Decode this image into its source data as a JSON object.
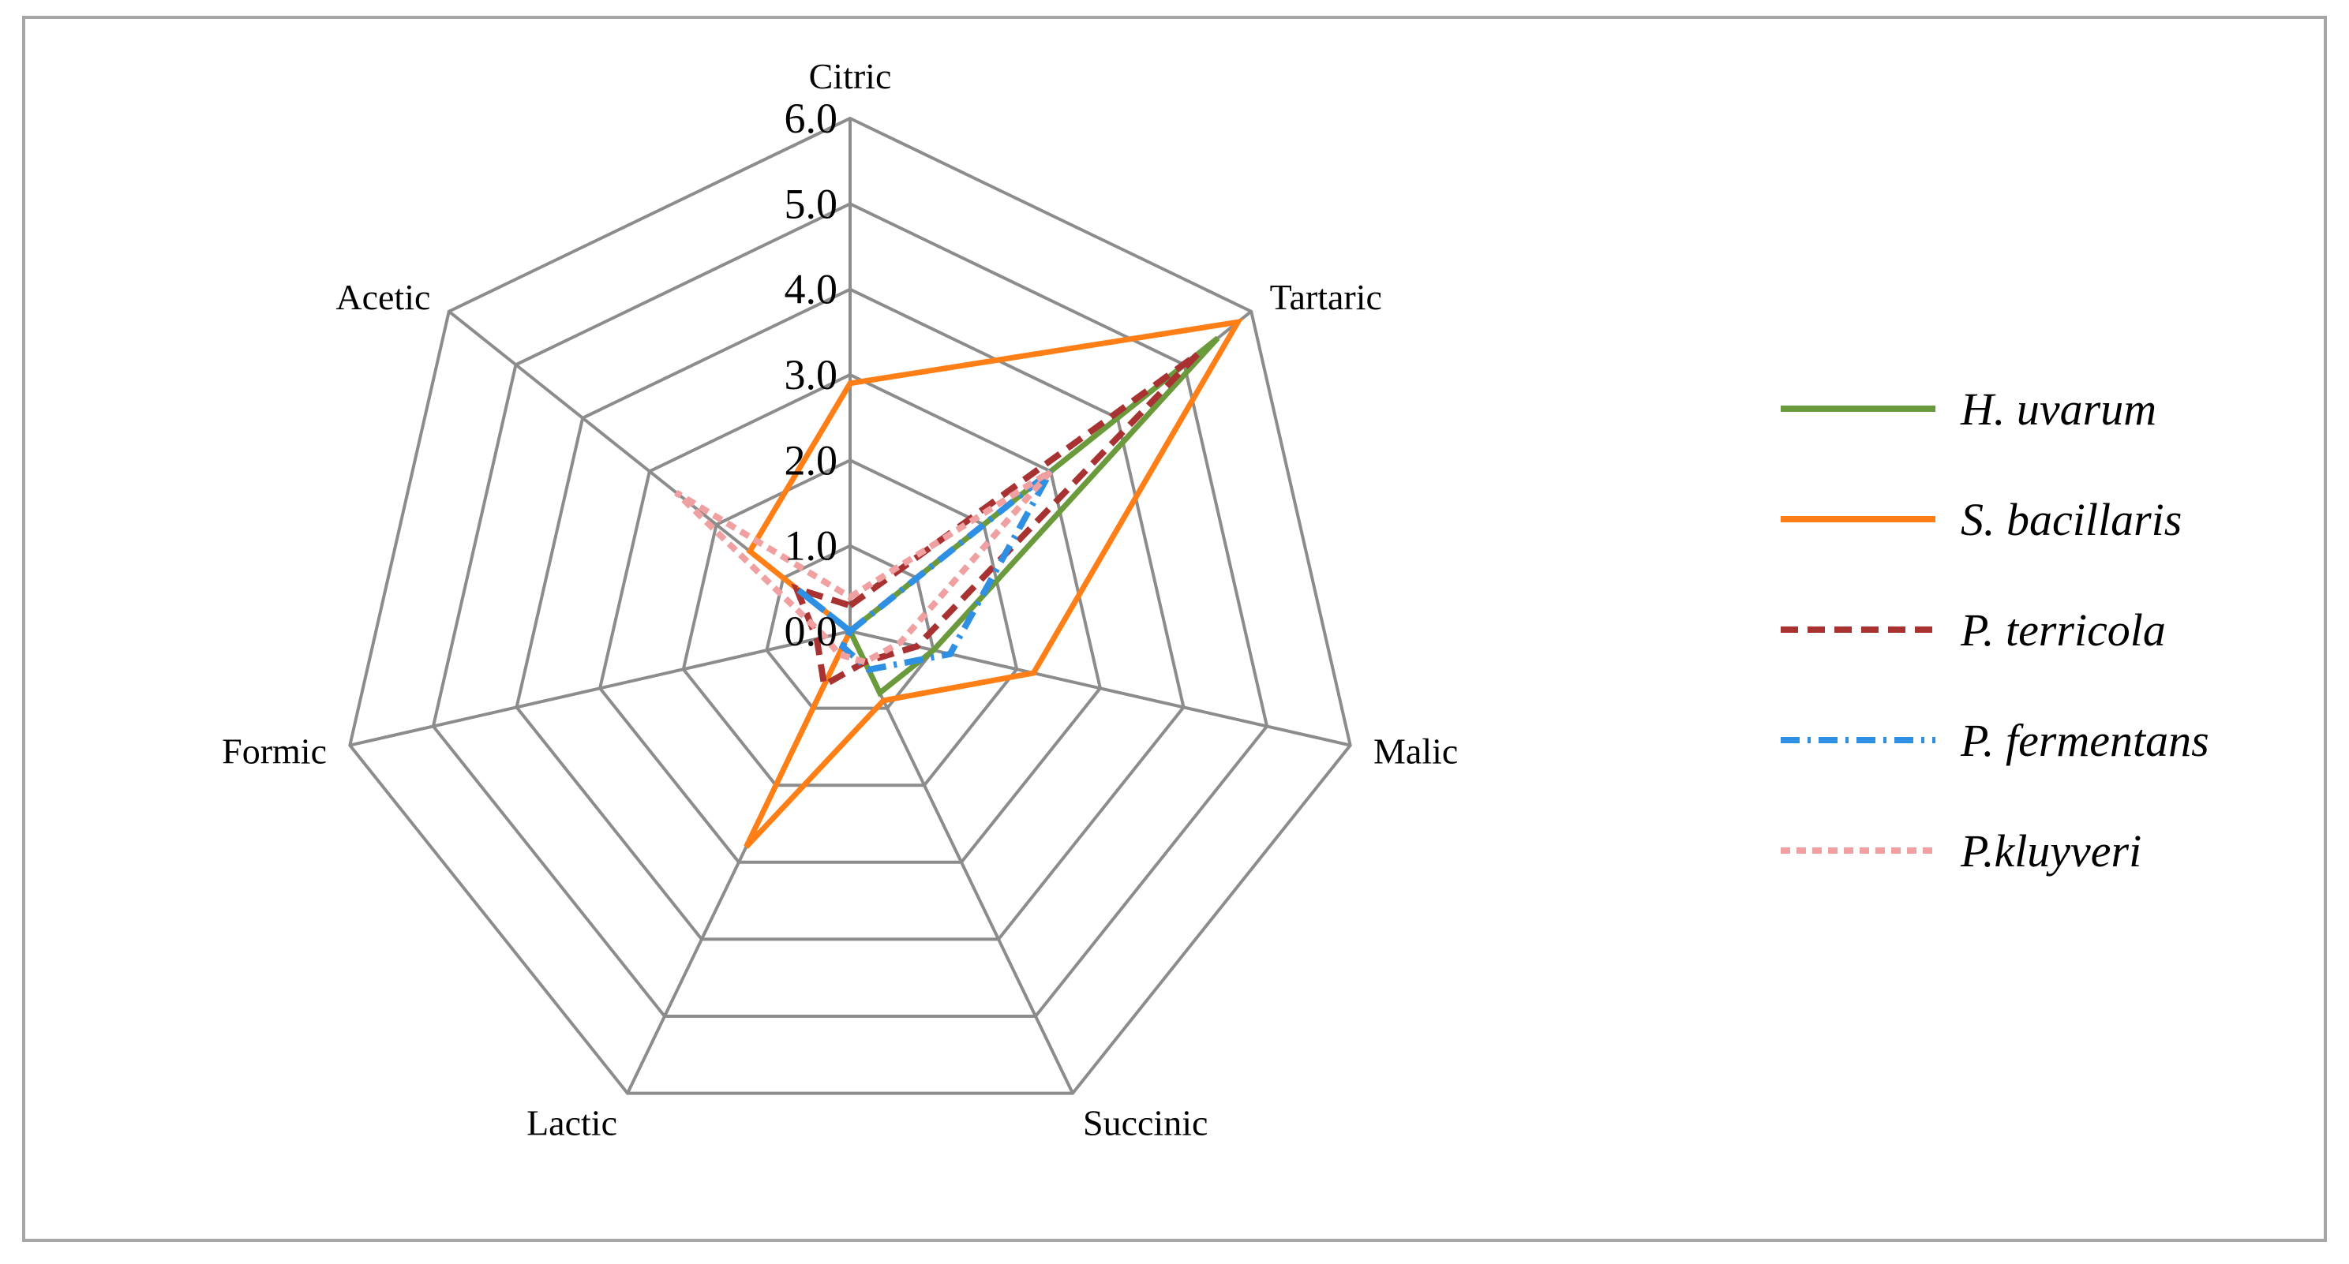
{
  "chart_data": {
    "type": "radar",
    "categories": [
      "Citric",
      "Tartaric",
      "Malic",
      "Succinic",
      "Lactic",
      "Formic",
      "Acetic"
    ],
    "rmax": 6.0,
    "ticks": [
      "0.0",
      "1.0",
      "2.0",
      "3.0",
      "4.0",
      "5.0",
      "6.0"
    ],
    "grid": true,
    "legend_position": "right",
    "series": [
      {
        "name": "H. uvarum",
        "color": "#6b9a3c",
        "dash": "solid",
        "values": [
          0.0,
          5.5,
          1.0,
          0.8,
          0.0,
          0.0,
          0.8
        ]
      },
      {
        "name": "S. bacillaris",
        "color": "#ff7f16",
        "dash": "solid",
        "values": [
          2.9,
          5.8,
          2.2,
          0.9,
          2.8,
          0.0,
          1.5
        ]
      },
      {
        "name": "P. terricola",
        "color": "#a83232",
        "dash": "dashed",
        "values": [
          0.3,
          5.2,
          0.8,
          0.4,
          0.7,
          0.4,
          0.8
        ]
      },
      {
        "name": "P. fermentans",
        "color": "#2f8fe3",
        "dash": "dashdot",
        "values": [
          0.0,
          3.0,
          1.2,
          0.5,
          0.2,
          0.0,
          0.8
        ]
      },
      {
        "name": "P.kluyveri",
        "color": "#f0a0a0",
        "dash": "dotted",
        "values": [
          0.4,
          3.0,
          0.6,
          0.4,
          0.3,
          0.3,
          2.6
        ]
      }
    ]
  }
}
